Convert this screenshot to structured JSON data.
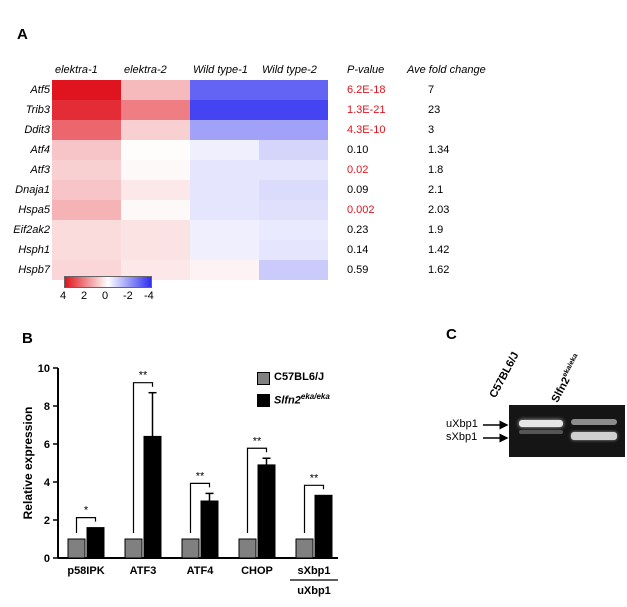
{
  "panelA": {
    "label": "A",
    "columns": [
      "elektra-1",
      "elektra-2",
      "Wild type-1",
      "Wild type-2"
    ],
    "pvalue_header": "P-value",
    "fold_header": "Ave fold change",
    "rows": [
      {
        "gene": "Atf5",
        "pvalue": "6.2E-18",
        "sig": true,
        "fold": "7",
        "cells": [
          4.0,
          1.2,
          -3.0,
          -3.0
        ]
      },
      {
        "gene": "Trib3",
        "pvalue": "1.3E-21",
        "sig": true,
        "fold": "23",
        "cells": [
          3.6,
          2.2,
          -3.6,
          -3.6
        ]
      },
      {
        "gene": "Ddit3",
        "pvalue": "4.3E-10",
        "sig": true,
        "fold": "3",
        "cells": [
          2.6,
          0.8,
          -1.8,
          -1.8
        ]
      },
      {
        "gene": "Atf4",
        "pvalue": "0.10",
        "sig": false,
        "fold": "1.34",
        "cells": [
          1.0,
          0.05,
          -0.3,
          -0.8
        ]
      },
      {
        "gene": "Atf3",
        "pvalue": "0.02",
        "sig": true,
        "fold": "1.8",
        "cells": [
          0.8,
          0.1,
          -0.5,
          -0.5
        ]
      },
      {
        "gene": "Dnaja1",
        "pvalue": "0.09",
        "sig": false,
        "fold": "2.1",
        "cells": [
          1.0,
          0.4,
          -0.5,
          -0.7
        ]
      },
      {
        "gene": "Hspa5",
        "pvalue": "0.002",
        "sig": true,
        "fold": "2.03",
        "cells": [
          1.3,
          0.1,
          -0.5,
          -0.6
        ]
      },
      {
        "gene": "Eif2ak2",
        "pvalue": "0.23",
        "sig": false,
        "fold": "1.9",
        "cells": [
          0.6,
          0.5,
          -0.3,
          -0.4
        ]
      },
      {
        "gene": "Hsph1",
        "pvalue": "0.14",
        "sig": false,
        "fold": "1.42",
        "cells": [
          0.6,
          0.5,
          -0.3,
          -0.5
        ]
      },
      {
        "gene": "Hspb7",
        "pvalue": "0.59",
        "sig": false,
        "fold": "1.62",
        "cells": [
          0.7,
          0.4,
          0.2,
          -1.0
        ]
      }
    ],
    "scale_ticks": [
      "4",
      "2",
      "0",
      "-2",
      "-4"
    ],
    "colors": {
      "high": "#e0141e",
      "low": "#2f2ff0",
      "mid": "#ffffff",
      "sig_text": "#e0141e"
    }
  },
  "panelB": {
    "label": "B",
    "chart_data": {
      "type": "bar",
      "ylabel": "Relative expression",
      "ylim": [
        0,
        10
      ],
      "yticks": [
        "0",
        "2",
        "4",
        "6",
        "8",
        "10"
      ],
      "categories": [
        "p58IPK",
        "ATF3",
        "ATF4",
        "CHOP",
        "sXbp1"
      ],
      "category_sublabel": "uXbp1",
      "series": [
        {
          "name": "C57BL6/J",
          "values": [
            1,
            1,
            1,
            1,
            1
          ],
          "errors": [
            0,
            0,
            0,
            0,
            0
          ],
          "color": "#808080"
        },
        {
          "name": "Slfn2",
          "superscript": "eka/eka",
          "values": [
            1.6,
            6.4,
            3.0,
            4.9,
            3.3
          ],
          "errors": [
            0,
            2.3,
            0.4,
            0.35,
            0
          ],
          "color": "#000000"
        }
      ],
      "significance": [
        "*",
        "**",
        "**",
        "**",
        "**"
      ]
    }
  },
  "panelC": {
    "label": "C",
    "lane1": "C57BL6/J",
    "lane2": "Slfn2",
    "lane2_sup": "eka/eka",
    "band_u": "uXbp1",
    "band_s": "sXbp1"
  }
}
